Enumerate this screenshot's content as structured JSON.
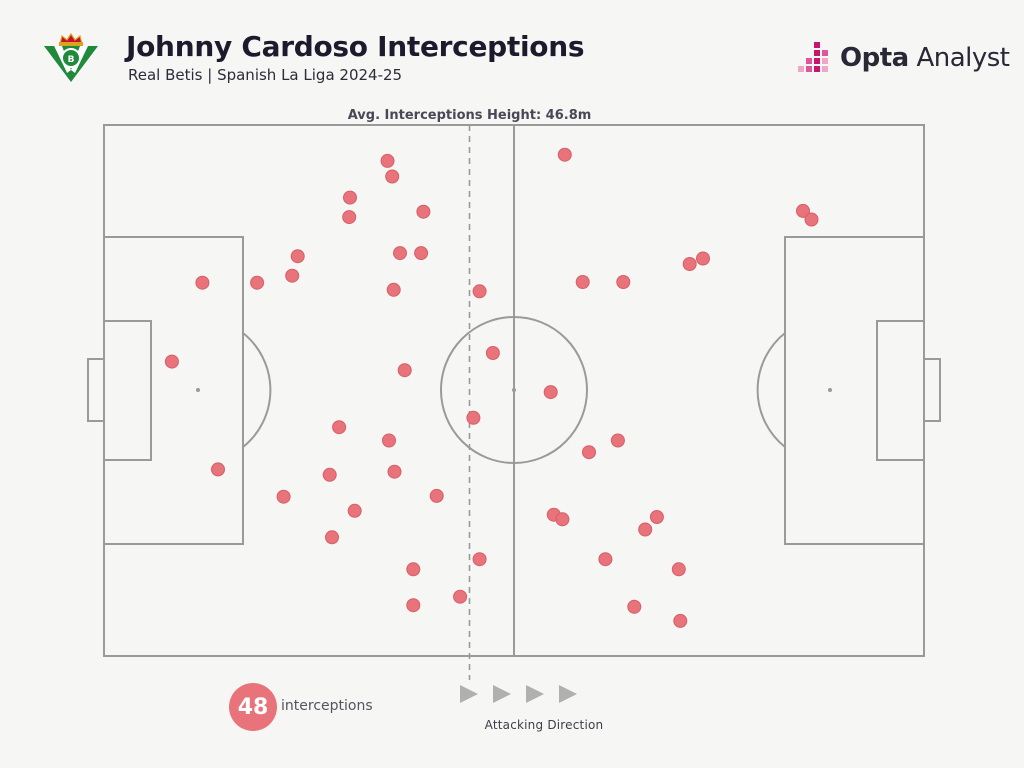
{
  "header": {
    "title": "Johnny Cardoso Interceptions",
    "subtitle": "Real Betis | Spanish La Liga 2024-25",
    "brand_bold": "Opta",
    "brand_light": "Analyst"
  },
  "colors": {
    "marker": "#e8737a",
    "marker_stroke": "#d65f68",
    "pitch_lines": "#9a9a9a",
    "avg_line": "#9a9a9a",
    "brand_accent": "#c9166d"
  },
  "icons": {
    "crest": "real-betis-crest-icon",
    "brand": "opta-bars-icon",
    "direction": "play-arrow-icon"
  },
  "chart_data": {
    "type": "scatter",
    "title": "Johnny Cardoso Interceptions",
    "subtitle": "Real Betis | Spanish La Liga 2024-25",
    "pitch_length_m": 105,
    "pitch_width_m": 68,
    "xlim": [
      0,
      105
    ],
    "ylim": [
      0,
      68
    ],
    "attacking_direction": "left-to-right",
    "avg_line_value": 46.8,
    "avg_line_label": "Avg. Interceptions Height: 46.8m",
    "points": [
      [
        36.3,
        63.4
      ],
      [
        59.0,
        64.2
      ],
      [
        36.9,
        61.4
      ],
      [
        31.5,
        58.7
      ],
      [
        40.9,
        56.9
      ],
      [
        31.4,
        56.2
      ],
      [
        89.5,
        57.0
      ],
      [
        90.6,
        55.9
      ],
      [
        24.8,
        51.2
      ],
      [
        37.9,
        51.6
      ],
      [
        40.6,
        51.6
      ],
      [
        76.7,
        50.9
      ],
      [
        75.0,
        50.2
      ],
      [
        12.6,
        47.8
      ],
      [
        19.6,
        47.8
      ],
      [
        24.1,
        48.7
      ],
      [
        37.1,
        46.9
      ],
      [
        48.1,
        46.7
      ],
      [
        61.3,
        47.9
      ],
      [
        66.5,
        47.9
      ],
      [
        8.7,
        37.7
      ],
      [
        49.8,
        38.8
      ],
      [
        38.5,
        36.6
      ],
      [
        57.2,
        33.8
      ],
      [
        47.3,
        30.5
      ],
      [
        30.1,
        29.3
      ],
      [
        36.5,
        27.6
      ],
      [
        65.8,
        27.6
      ],
      [
        62.1,
        26.1
      ],
      [
        14.6,
        23.9
      ],
      [
        28.9,
        23.2
      ],
      [
        37.2,
        23.6
      ],
      [
        23.0,
        20.4
      ],
      [
        42.6,
        20.5
      ],
      [
        32.1,
        18.6
      ],
      [
        57.6,
        18.1
      ],
      [
        58.7,
        17.5
      ],
      [
        70.8,
        17.8
      ],
      [
        69.3,
        16.2
      ],
      [
        29.2,
        15.2
      ],
      [
        48.1,
        12.4
      ],
      [
        39.6,
        11.1
      ],
      [
        64.2,
        12.4
      ],
      [
        73.6,
        11.1
      ],
      [
        39.6,
        6.5
      ],
      [
        45.6,
        7.6
      ],
      [
        67.9,
        6.3
      ],
      [
        73.8,
        4.5
      ]
    ]
  },
  "summary": {
    "count": "48",
    "count_label": "interceptions",
    "direction_label": "Attacking Direction"
  }
}
